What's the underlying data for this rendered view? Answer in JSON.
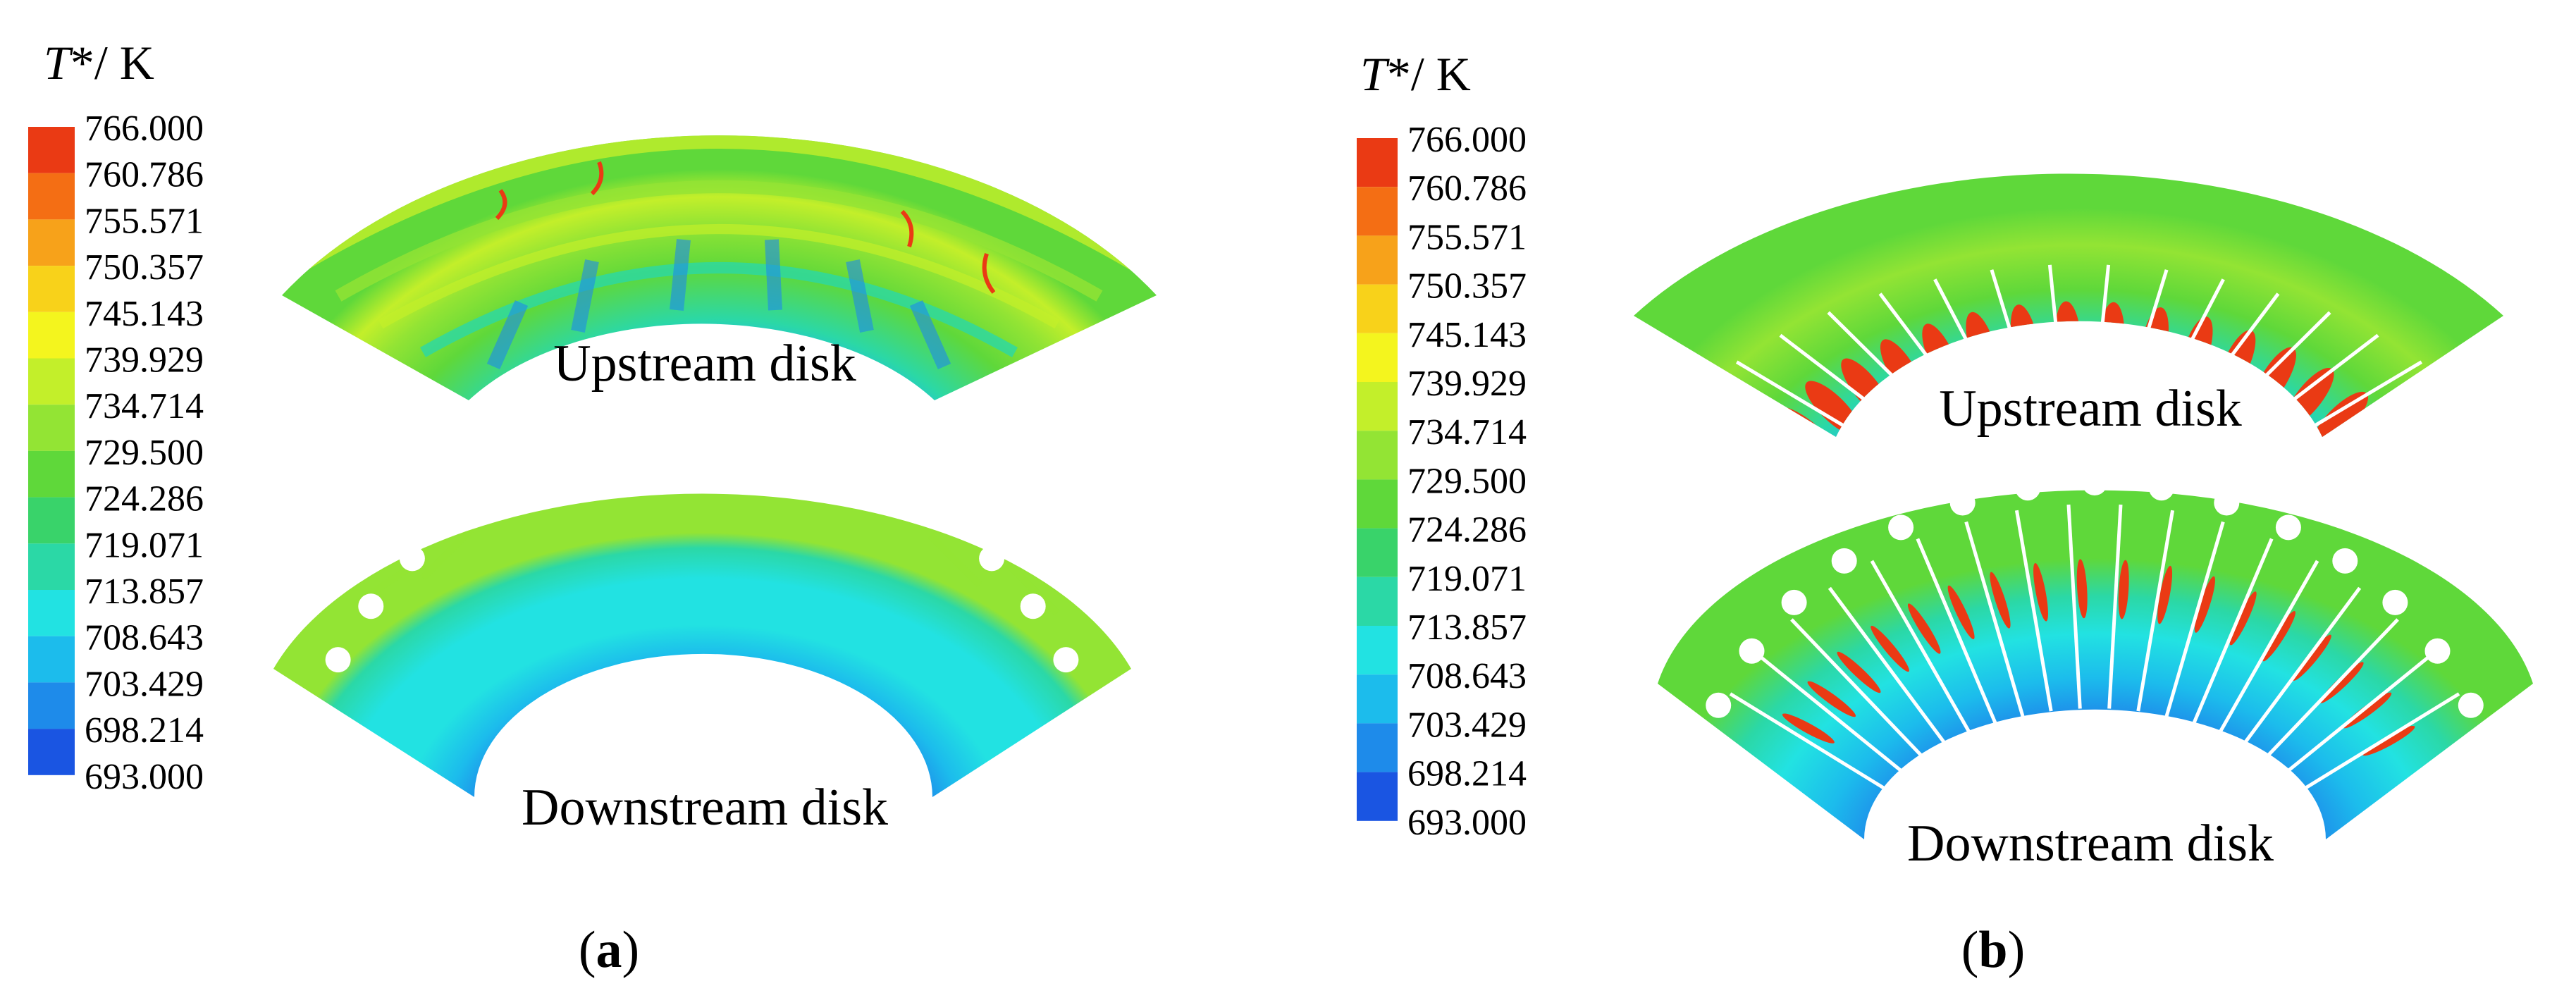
{
  "panels": [
    {
      "id": "a",
      "legend": {
        "title_symbol": "T",
        "title_rest": "*/ K",
        "levels": [
          "766.000",
          "760.786",
          "755.571",
          "750.357",
          "745.143",
          "739.929",
          "734.714",
          "729.500",
          "724.286",
          "719.071",
          "713.857",
          "708.643",
          "703.429",
          "698.214",
          "693.000"
        ],
        "colors": [
          "#ea3a14",
          "#f46e14",
          "#f7a21a",
          "#f8d21a",
          "#f4f51e",
          "#c3ef2a",
          "#93e434",
          "#5fd83a",
          "#39d36a",
          "#2bd8a6",
          "#22e2e2",
          "#1cbcec",
          "#1e8bea",
          "#1a55e2",
          "#1220e0"
        ]
      },
      "upstream_label": "Upstream disk",
      "downstream_label": "Downstream disk",
      "panel_label": "a"
    },
    {
      "id": "b",
      "legend": {
        "title_symbol": "T",
        "title_rest": "*/ K",
        "levels": [
          "766.000",
          "760.786",
          "755.571",
          "750.357",
          "745.143",
          "739.929",
          "734.714",
          "729.500",
          "724.286",
          "719.071",
          "713.857",
          "708.643",
          "703.429",
          "698.214",
          "693.000"
        ],
        "colors": [
          "#ea3a14",
          "#f46e14",
          "#f7a21a",
          "#f8d21a",
          "#f4f51e",
          "#c3ef2a",
          "#93e434",
          "#5fd83a",
          "#39d36a",
          "#2bd8a6",
          "#22e2e2",
          "#1cbcec",
          "#1e8bea",
          "#1a55e2",
          "#1220e0"
        ]
      },
      "upstream_label": "Upstream disk",
      "downstream_label": "Downstream disk",
      "panel_label": "b"
    }
  ]
}
